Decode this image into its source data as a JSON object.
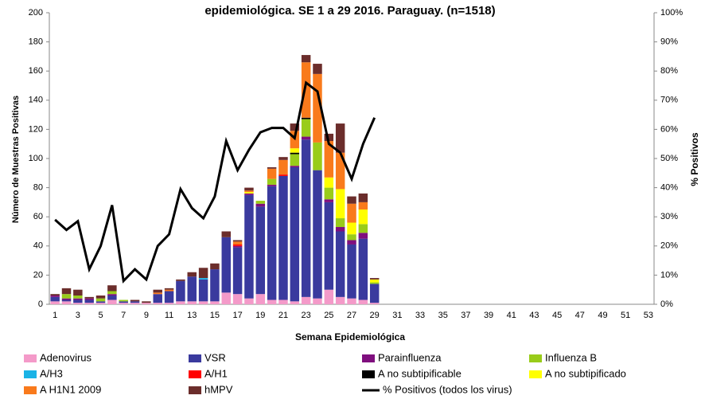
{
  "chart_data": {
    "type": "bar",
    "title": "epidemiológica. SE 1 a 29 2016. Paraguay. (n=1518)",
    "x_label": "Semana Epidemiológica",
    "y_label": "Número de Muestras Positivas",
    "y2_label": "% Positivos",
    "stacked": true,
    "categories": [
      1,
      null,
      3,
      null,
      5,
      null,
      7,
      null,
      9,
      null,
      11,
      null,
      13,
      null,
      15,
      null,
      17,
      null,
      19,
      null,
      21,
      null,
      23,
      null,
      25,
      null,
      27,
      null,
      29,
      null,
      31,
      null,
      33,
      null,
      35,
      null,
      37,
      null,
      39,
      null,
      41,
      null,
      43,
      null,
      45,
      null,
      47,
      null,
      49,
      null,
      51,
      null,
      53
    ],
    "ylim": [
      0,
      200
    ],
    "yticks": [
      0,
      20,
      40,
      60,
      80,
      100,
      120,
      140,
      160,
      180,
      200
    ],
    "y2lim": [
      0,
      100
    ],
    "y2ticks": [
      {
        "value": 0,
        "label": "0%"
      },
      {
        "value": 10,
        "label": "10%"
      },
      {
        "value": 20,
        "label": "20%"
      },
      {
        "value": 30,
        "label": "30%"
      },
      {
        "value": 40,
        "label": "40%"
      },
      {
        "value": 50,
        "label": "50%"
      },
      {
        "value": 60,
        "label": "60%"
      },
      {
        "value": 70,
        "label": "70%"
      },
      {
        "value": 80,
        "label": "80%"
      },
      {
        "value": 90,
        "label": "90%"
      },
      {
        "value": 100,
        "label": "100%"
      }
    ],
    "series": [
      {
        "name": "Adenovirus",
        "color": "#f49ac9",
        "values": [
          2,
          2,
          1,
          1,
          1,
          3,
          1,
          1,
          1,
          1,
          1,
          2,
          2,
          2,
          2,
          8,
          7,
          4,
          7,
          3,
          3,
          2,
          5,
          4,
          10,
          5,
          4,
          3,
          1,
          null,
          null,
          null,
          null,
          null,
          null,
          null,
          null,
          null,
          null,
          null,
          null,
          null,
          null,
          null,
          null,
          null,
          null,
          null,
          null,
          null,
          null,
          null,
          null
        ]
      },
      {
        "name": "VSR",
        "color": "#3a3a9e",
        "values": [
          3,
          1,
          2,
          2,
          1,
          3,
          1,
          1,
          0,
          6,
          8,
          14,
          17,
          15,
          22,
          38,
          32,
          71,
          60,
          78,
          85,
          92,
          108,
          88,
          60,
          45,
          37,
          42,
          13,
          null,
          null,
          null,
          null,
          null,
          null,
          null,
          null,
          null,
          null,
          null,
          null,
          null,
          null,
          null,
          null,
          null,
          null,
          null,
          null,
          null,
          null,
          null,
          null
        ]
      },
      {
        "name": "Parainfluenza",
        "color": "#7f0f7e",
        "values": [
          1,
          1,
          1,
          1,
          0,
          1,
          0,
          0,
          0,
          0,
          0,
          0,
          0,
          0,
          0,
          0,
          1,
          1,
          2,
          1,
          0,
          1,
          2,
          0,
          2,
          3,
          3,
          4,
          0,
          null,
          null,
          null,
          null,
          null,
          null,
          null,
          null,
          null,
          null,
          null,
          null,
          null,
          null,
          null,
          null,
          null,
          null,
          null,
          null,
          null,
          null,
          null,
          null
        ]
      },
      {
        "name": "Influenza  B",
        "color": "#99cc1a",
        "values": [
          0,
          3,
          2,
          0,
          2,
          2,
          1,
          0,
          0,
          0,
          0,
          0,
          0,
          0,
          0,
          0,
          0,
          0,
          2,
          4,
          0,
          8,
          12,
          19,
          8,
          6,
          4,
          6,
          1,
          null,
          null,
          null,
          null,
          null,
          null,
          null,
          null,
          null,
          null,
          null,
          null,
          null,
          null,
          null,
          null,
          null,
          null,
          null,
          null,
          null,
          null,
          null,
          null
        ]
      },
      {
        "name": "A/H3",
        "color": "#1ab3e6",
        "values": [
          0,
          0,
          0,
          0,
          0,
          0,
          0,
          0,
          0,
          0,
          0,
          0,
          0,
          1,
          0,
          0,
          0,
          0,
          0,
          0,
          0,
          0,
          0,
          0,
          0,
          0,
          0,
          0,
          0,
          null,
          null,
          null,
          null,
          null,
          null,
          null,
          null,
          null,
          null,
          null,
          null,
          null,
          null,
          null,
          null,
          null,
          null,
          null,
          null,
          null,
          null,
          null,
          null
        ]
      },
      {
        "name": "A/H1",
        "color": "#ff0000",
        "values": [
          0,
          0,
          0,
          0,
          0,
          0,
          0,
          0,
          0,
          0,
          0,
          0,
          0,
          0,
          0,
          0,
          1,
          0,
          0,
          0,
          1,
          0,
          0,
          0,
          0,
          0,
          0,
          0,
          0,
          null,
          null,
          null,
          null,
          null,
          null,
          null,
          null,
          null,
          null,
          null,
          null,
          null,
          null,
          null,
          null,
          null,
          null,
          null,
          null,
          null,
          null,
          null,
          null
        ]
      },
      {
        "name": "A no subtipificable",
        "color": "#000000",
        "values": [
          0,
          0,
          0,
          0,
          0,
          0,
          0,
          0,
          0,
          0,
          0,
          0,
          0,
          0,
          0,
          0,
          0,
          0,
          0,
          0,
          0,
          1,
          1,
          0,
          0,
          0,
          0,
          0,
          0,
          null,
          null,
          null,
          null,
          null,
          null,
          null,
          null,
          null,
          null,
          null,
          null,
          null,
          null,
          null,
          null,
          null,
          null,
          null,
          null,
          null,
          null,
          null,
          null
        ]
      },
      {
        "name": "A no subtipificado",
        "color": "#ffff00",
        "values": [
          0,
          0,
          0,
          0,
          0,
          0,
          0,
          0,
          0,
          0,
          0,
          0,
          0,
          0,
          0,
          0,
          0,
          1,
          0,
          0,
          0,
          3,
          0,
          0,
          7,
          20,
          8,
          10,
          2,
          null,
          null,
          null,
          null,
          null,
          null,
          null,
          null,
          null,
          null,
          null,
          null,
          null,
          null,
          null,
          null,
          null,
          null,
          null,
          null,
          null,
          null,
          null,
          null
        ]
      },
      {
        "name": "A H1N1 2009",
        "color": "#f97a1c",
        "values": [
          0,
          0,
          0,
          0,
          0,
          0,
          0,
          0,
          0,
          1,
          1,
          0,
          0,
          0,
          0,
          0,
          2,
          1,
          0,
          7,
          10,
          12,
          38,
          47,
          25,
          25,
          13,
          5,
          0,
          null,
          null,
          null,
          null,
          null,
          null,
          null,
          null,
          null,
          null,
          null,
          null,
          null,
          null,
          null,
          null,
          null,
          null,
          null,
          null,
          null,
          null,
          null,
          null
        ]
      },
      {
        "name": "hMPV",
        "color": "#6b2d2b",
        "values": [
          1,
          4,
          4,
          1,
          2,
          4,
          0,
          1,
          1,
          2,
          1,
          1,
          3,
          7,
          4,
          4,
          1,
          2,
          0,
          1,
          2,
          5,
          5,
          7,
          5,
          20,
          5,
          6,
          1,
          null,
          null,
          null,
          null,
          null,
          null,
          null,
          null,
          null,
          null,
          null,
          null,
          null,
          null,
          null,
          null,
          null,
          null,
          null,
          null,
          null,
          null,
          null,
          null
        ]
      },
      {
        "name": "% Positivos (todos los virus)",
        "color": "#000000",
        "type": "line",
        "axis": "y2",
        "values": [
          29,
          25.5,
          28.5,
          12,
          20,
          34,
          8,
          12,
          8.5,
          20,
          24,
          39.5,
          33,
          29.5,
          37,
          56,
          46,
          53,
          59,
          60.5,
          60.5,
          57,
          76,
          73,
          55,
          52,
          43,
          55,
          64,
          null,
          null,
          null,
          null,
          null,
          null,
          null,
          null,
          null,
          null,
          null,
          null,
          null,
          null,
          null,
          null,
          null,
          null,
          null,
          null,
          null,
          null,
          null,
          null
        ]
      }
    ]
  }
}
